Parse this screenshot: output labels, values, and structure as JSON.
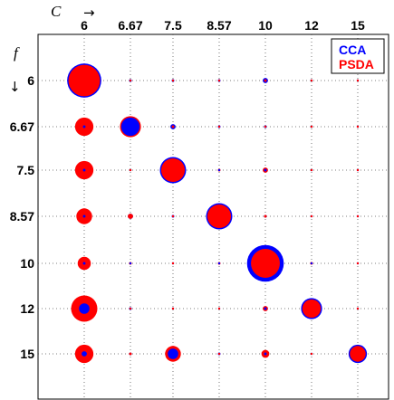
{
  "chart_data": {
    "type": "scatter",
    "title": "",
    "x_axis": {
      "symbol": "C",
      "arrow": "→",
      "position": "top",
      "ticks": [
        "6",
        "6.67",
        "7.5",
        "8.57",
        "10",
        "12",
        "15"
      ]
    },
    "y_axis": {
      "symbol": "f",
      "arrow": "↓",
      "ticks": [
        "6",
        "6.67",
        "7.5",
        "8.57",
        "10",
        "12",
        "15"
      ]
    },
    "grid": "dotted",
    "legend": {
      "placement": "top-right",
      "entries": [
        {
          "label": "CCA",
          "color": "#0000ff"
        },
        {
          "label": "PSDA",
          "color": "#ff0000"
        }
      ]
    },
    "series": [
      {
        "name": "CCA",
        "color": "#0000ff",
        "values": [
          [
            13,
            1,
            1,
            1,
            2,
            0.5,
            0.5
          ],
          [
            1,
            7,
            2,
            1,
            1,
            0.5,
            0.5
          ],
          [
            1,
            0.5,
            10,
            0.5,
            1,
            0.5,
            0.5
          ],
          [
            1,
            2,
            1,
            10,
            1,
            0.5,
            0.5
          ],
          [
            1,
            0.5,
            0.5,
            0.5,
            14,
            0.5,
            0.5
          ],
          [
            4,
            1,
            0.5,
            0.5,
            1,
            8,
            0.5
          ],
          [
            2,
            1,
            4,
            1,
            1,
            0.5,
            7
          ]
        ]
      },
      {
        "name": "PSDA",
        "color": "#ff0000",
        "values": [
          [
            12,
            0.5,
            0.5,
            0.5,
            1,
            0.5,
            0.5
          ],
          [
            7,
            8,
            1,
            0.5,
            0.5,
            0.5,
            0.5
          ],
          [
            7,
            0.5,
            9,
            1,
            2,
            0.5,
            0.5
          ],
          [
            6,
            2,
            0.5,
            9,
            1,
            0.5,
            0.5
          ],
          [
            5,
            1,
            0.5,
            1,
            11,
            1,
            0.5
          ],
          [
            10,
            0.5,
            0.5,
            0.5,
            2,
            7,
            0.5
          ],
          [
            7,
            1,
            6,
            0.5,
            3,
            0.5,
            6
          ]
        ]
      }
    ]
  }
}
